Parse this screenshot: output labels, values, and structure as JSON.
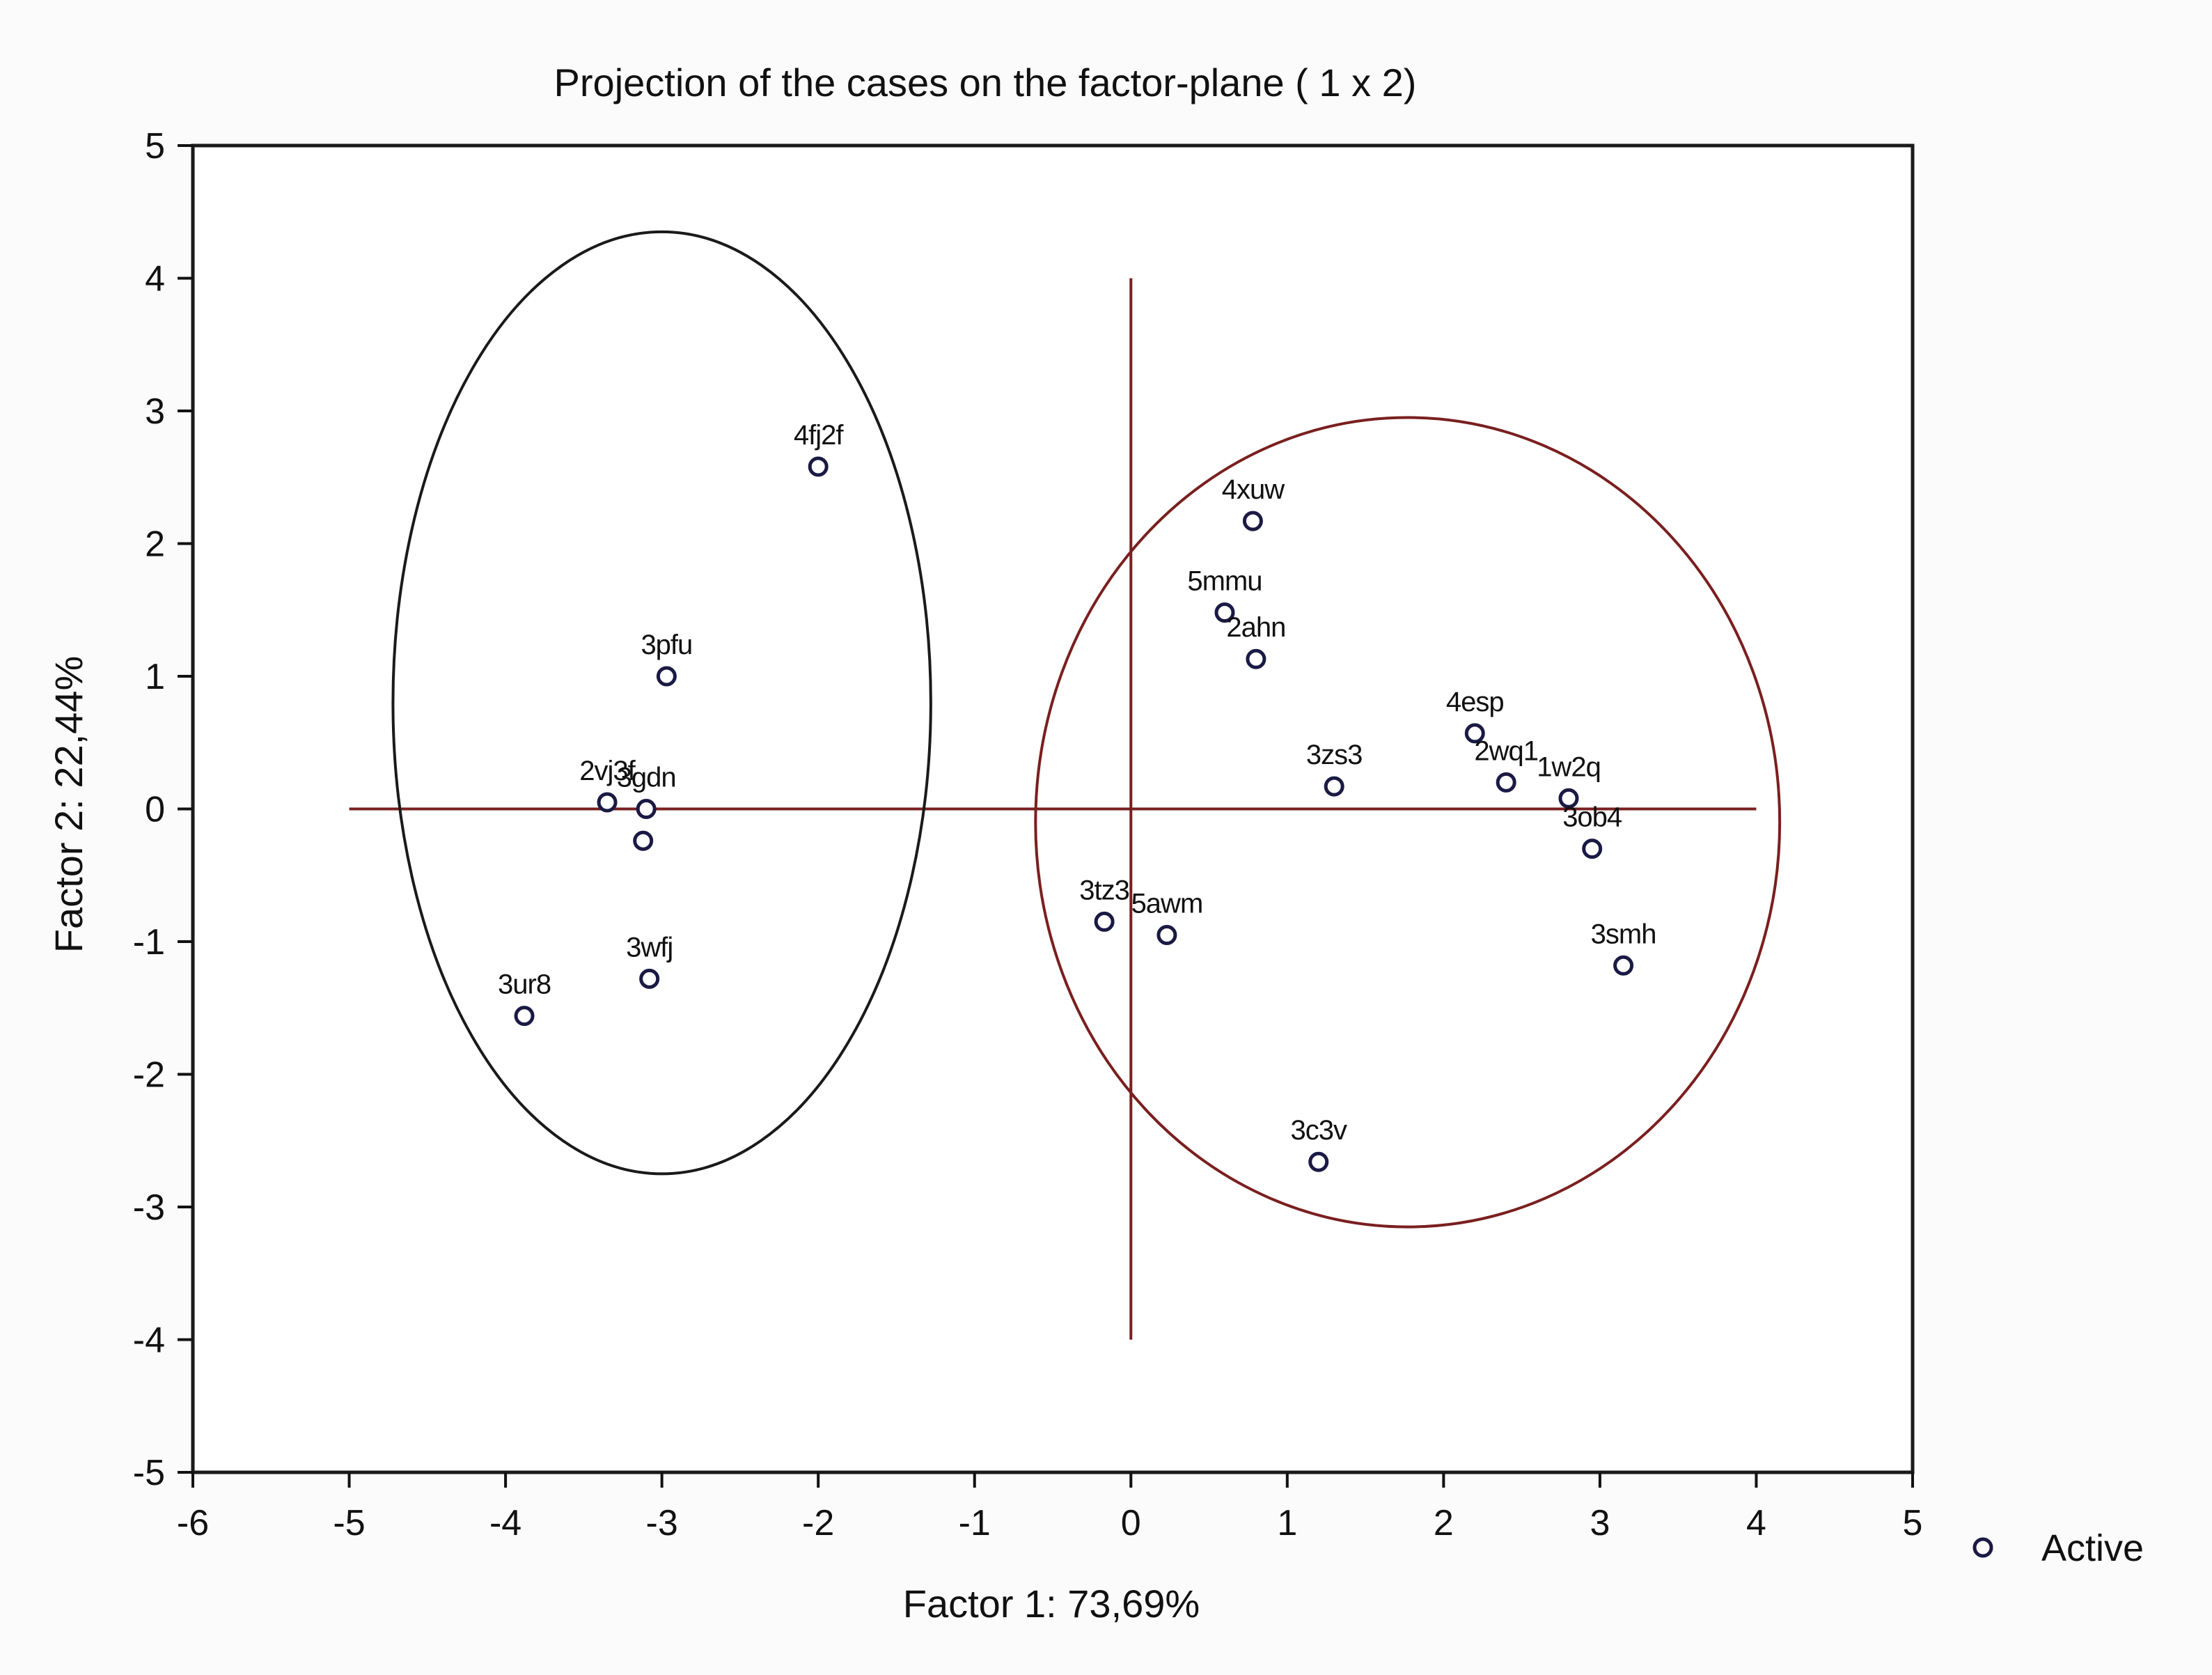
{
  "chart_data": {
    "type": "scatter",
    "title": "Projection of the cases on the factor-plane (  1 x   2)",
    "xlabel": "Factor 1: 73,69%",
    "ylabel": "Factor 2: 22,44%",
    "xlim": [
      -6,
      5
    ],
    "ylim": [
      -5,
      5
    ],
    "x_ticks": [
      -6,
      -5,
      -4,
      -3,
      -2,
      -1,
      0,
      1,
      2,
      3,
      4,
      5
    ],
    "x_tick_labels": [
      "-6",
      "-5",
      "-4",
      "-3",
      "-2",
      "-1",
      "0",
      "1",
      "2",
      "3",
      "4",
      "5"
    ],
    "y_ticks": [
      5,
      4,
      3,
      2,
      1,
      0,
      -1,
      -2,
      -3,
      -4,
      -5
    ],
    "y_tick_labels": [
      "5",
      "4",
      "3",
      "2",
      "1",
      "0",
      "-1",
      "-2",
      "-3",
      "-4",
      "-5"
    ],
    "grid": false,
    "legend": {
      "position": "right",
      "entries": [
        "Active"
      ]
    },
    "series": [
      {
        "name": "Active",
        "marker": "circle-open",
        "points": [
          {
            "label": "4fj2f",
            "x": -2.0,
            "y": 2.58
          },
          {
            "label": "3pfu",
            "x": -2.97,
            "y": 1.0
          },
          {
            "label": "2vj3f",
            "x": -3.35,
            "y": 0.05
          },
          {
            "label": "3gdn",
            "x": -3.1,
            "y": 0.0
          },
          {
            "label": "",
            "x": -3.12,
            "y": -0.24
          },
          {
            "label": "3wfj",
            "x": -3.08,
            "y": -1.28
          },
          {
            "label": "3ur8",
            "x": -3.88,
            "y": -1.56
          },
          {
            "label": "4xuw",
            "x": 0.78,
            "y": 2.17
          },
          {
            "label": "5mmu",
            "x": 0.6,
            "y": 1.48
          },
          {
            "label": "2ahn",
            "x": 0.8,
            "y": 1.13
          },
          {
            "label": "3zs3",
            "x": 1.3,
            "y": 0.17
          },
          {
            "label": "4esp",
            "x": 2.2,
            "y": 0.57
          },
          {
            "label": "2wq1",
            "x": 2.4,
            "y": 0.2
          },
          {
            "label": "1w2q",
            "x": 2.8,
            "y": 0.08
          },
          {
            "label": "3ob4",
            "x": 2.95,
            "y": -0.3
          },
          {
            "label": "3tz3",
            "x": -0.17,
            "y": -0.85
          },
          {
            "label": "5awm",
            "x": 0.23,
            "y": -0.95
          },
          {
            "label": "3smh",
            "x": 3.15,
            "y": -1.18
          },
          {
            "label": "3c3v",
            "x": 1.2,
            "y": -2.66
          }
        ]
      }
    ],
    "reference_lines": {
      "horizontal": {
        "y": 0,
        "x_from": -5,
        "x_to": 4
      },
      "vertical": {
        "x": 0,
        "y_from": -4,
        "y_to": 4
      },
      "color": "#7a1f1f"
    },
    "ellipses": [
      {
        "name": "left-cluster",
        "cx": -3.0,
        "cy": 0.8,
        "rx": 1.72,
        "ry": 3.55,
        "color": "#1a1a1a"
      },
      {
        "name": "right-cluster",
        "cx": 1.77,
        "cy": -0.1,
        "rx": 2.38,
        "ry": 3.05,
        "color": "#7a1f1f"
      }
    ]
  },
  "colors": {
    "marker": "#1a1a44",
    "axis": "#111111",
    "reference": "#7a1f1f",
    "left_ellipse": "#1a1a1a",
    "right_ellipse": "#7a1f1f"
  }
}
